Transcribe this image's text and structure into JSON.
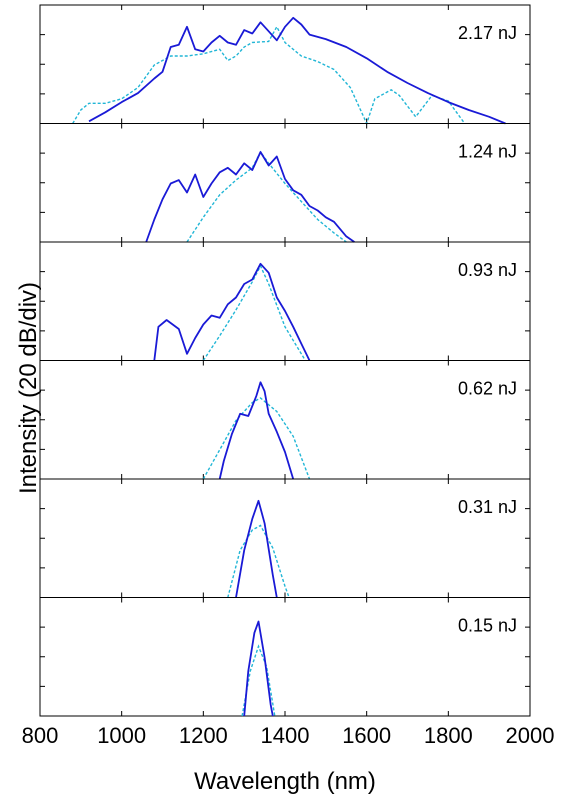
{
  "chart_data": {
    "type": "line",
    "xlabel": "Wavelength (nm)",
    "ylabel": "Intensity (20 dB/div)",
    "xlim": [
      800,
      2000
    ],
    "xticks": [
      "800",
      "1000",
      "1200",
      "1400",
      "1600",
      "1800",
      "2000"
    ],
    "y_unit_per_div_dB": 20,
    "grid": false,
    "line_colors": {
      "measured": "#1a1ad6",
      "simulated": "#21b6d6"
    },
    "panels": [
      {
        "label": "2.17 nJ",
        "measured": [
          [
            920,
            0.02
          ],
          [
            960,
            0.1
          ],
          [
            1000,
            0.19
          ],
          [
            1040,
            0.27
          ],
          [
            1080,
            0.4
          ],
          [
            1100,
            0.46
          ],
          [
            1120,
            0.68
          ],
          [
            1140,
            0.7
          ],
          [
            1160,
            0.86
          ],
          [
            1180,
            0.66
          ],
          [
            1200,
            0.64
          ],
          [
            1220,
            0.72
          ],
          [
            1240,
            0.78
          ],
          [
            1260,
            0.72
          ],
          [
            1280,
            0.7
          ],
          [
            1300,
            0.83
          ],
          [
            1320,
            0.8
          ],
          [
            1340,
            0.9
          ],
          [
            1360,
            0.82
          ],
          [
            1380,
            0.74
          ],
          [
            1400,
            0.86
          ],
          [
            1420,
            0.94
          ],
          [
            1440,
            0.88
          ],
          [
            1460,
            0.79
          ],
          [
            1500,
            0.75
          ],
          [
            1550,
            0.68
          ],
          [
            1600,
            0.58
          ],
          [
            1650,
            0.46
          ],
          [
            1700,
            0.36
          ],
          [
            1750,
            0.27
          ],
          [
            1800,
            0.19
          ],
          [
            1850,
            0.12
          ],
          [
            1900,
            0.06
          ],
          [
            1940,
            0.0
          ]
        ],
        "simulated": [
          [
            880,
            0.0
          ],
          [
            900,
            0.12
          ],
          [
            920,
            0.18
          ],
          [
            960,
            0.18
          ],
          [
            1000,
            0.22
          ],
          [
            1040,
            0.32
          ],
          [
            1080,
            0.52
          ],
          [
            1120,
            0.6
          ],
          [
            1160,
            0.6
          ],
          [
            1200,
            0.62
          ],
          [
            1240,
            0.66
          ],
          [
            1260,
            0.56
          ],
          [
            1280,
            0.6
          ],
          [
            1300,
            0.68
          ],
          [
            1320,
            0.72
          ],
          [
            1360,
            0.73
          ],
          [
            1380,
            0.86
          ],
          [
            1400,
            0.72
          ],
          [
            1440,
            0.6
          ],
          [
            1480,
            0.55
          ],
          [
            1520,
            0.48
          ],
          [
            1560,
            0.32
          ],
          [
            1600,
            0.0
          ],
          [
            1620,
            0.22
          ],
          [
            1660,
            0.3
          ],
          [
            1680,
            0.25
          ],
          [
            1720,
            0.06
          ],
          [
            1760,
            0.25
          ],
          [
            1800,
            0.2
          ],
          [
            1840,
            0.0
          ]
        ]
      },
      {
        "label": "1.24 nJ",
        "measured": [
          [
            1060,
            0.0
          ],
          [
            1080,
            0.2
          ],
          [
            1100,
            0.38
          ],
          [
            1120,
            0.52
          ],
          [
            1140,
            0.55
          ],
          [
            1160,
            0.44
          ],
          [
            1180,
            0.6
          ],
          [
            1200,
            0.4
          ],
          [
            1220,
            0.52
          ],
          [
            1240,
            0.62
          ],
          [
            1260,
            0.66
          ],
          [
            1280,
            0.6
          ],
          [
            1300,
            0.7
          ],
          [
            1320,
            0.64
          ],
          [
            1340,
            0.8
          ],
          [
            1360,
            0.68
          ],
          [
            1380,
            0.76
          ],
          [
            1400,
            0.56
          ],
          [
            1420,
            0.46
          ],
          [
            1440,
            0.42
          ],
          [
            1460,
            0.32
          ],
          [
            1480,
            0.28
          ],
          [
            1500,
            0.22
          ],
          [
            1520,
            0.18
          ],
          [
            1550,
            0.05
          ],
          [
            1570,
            0.0
          ]
        ],
        "simulated": [
          [
            1160,
            0.0
          ],
          [
            1200,
            0.22
          ],
          [
            1240,
            0.42
          ],
          [
            1280,
            0.55
          ],
          [
            1320,
            0.66
          ],
          [
            1340,
            0.8
          ],
          [
            1360,
            0.7
          ],
          [
            1400,
            0.52
          ],
          [
            1440,
            0.36
          ],
          [
            1480,
            0.2
          ],
          [
            1520,
            0.08
          ],
          [
            1550,
            0.0
          ]
        ]
      },
      {
        "label": "0.93 nJ",
        "measured": [
          [
            1080,
            0.0
          ],
          [
            1090,
            0.3
          ],
          [
            1110,
            0.36
          ],
          [
            1140,
            0.28
          ],
          [
            1160,
            0.06
          ],
          [
            1180,
            0.2
          ],
          [
            1200,
            0.32
          ],
          [
            1220,
            0.4
          ],
          [
            1240,
            0.38
          ],
          [
            1260,
            0.5
          ],
          [
            1280,
            0.56
          ],
          [
            1300,
            0.68
          ],
          [
            1320,
            0.72
          ],
          [
            1340,
            0.86
          ],
          [
            1360,
            0.78
          ],
          [
            1380,
            0.56
          ],
          [
            1400,
            0.44
          ],
          [
            1420,
            0.3
          ],
          [
            1440,
            0.15
          ],
          [
            1460,
            0.0
          ]
        ],
        "simulated": [
          [
            1200,
            0.0
          ],
          [
            1240,
            0.22
          ],
          [
            1280,
            0.45
          ],
          [
            1320,
            0.7
          ],
          [
            1340,
            0.84
          ],
          [
            1360,
            0.68
          ],
          [
            1400,
            0.3
          ],
          [
            1440,
            0.06
          ],
          [
            1450,
            0.0
          ]
        ]
      },
      {
        "label": "0.62 nJ",
        "measured": [
          [
            1240,
            0.0
          ],
          [
            1250,
            0.16
          ],
          [
            1270,
            0.4
          ],
          [
            1290,
            0.58
          ],
          [
            1310,
            0.56
          ],
          [
            1330,
            0.74
          ],
          [
            1340,
            0.86
          ],
          [
            1350,
            0.78
          ],
          [
            1360,
            0.58
          ],
          [
            1380,
            0.42
          ],
          [
            1400,
            0.24
          ],
          [
            1420,
            0.0
          ]
        ],
        "simulated": [
          [
            1200,
            0.0
          ],
          [
            1240,
            0.26
          ],
          [
            1280,
            0.52
          ],
          [
            1320,
            0.68
          ],
          [
            1340,
            0.72
          ],
          [
            1380,
            0.6
          ],
          [
            1420,
            0.38
          ],
          [
            1460,
            0.0
          ]
        ]
      },
      {
        "label": "0.31 nJ",
        "measured": [
          [
            1280,
            0.0
          ],
          [
            1300,
            0.42
          ],
          [
            1320,
            0.7
          ],
          [
            1335,
            0.86
          ],
          [
            1350,
            0.66
          ],
          [
            1370,
            0.2
          ],
          [
            1380,
            0.0
          ]
        ],
        "simulated": [
          [
            1260,
            0.0
          ],
          [
            1290,
            0.42
          ],
          [
            1320,
            0.6
          ],
          [
            1340,
            0.64
          ],
          [
            1370,
            0.44
          ],
          [
            1400,
            0.1
          ],
          [
            1410,
            0.0
          ]
        ]
      },
      {
        "label": "0.15 nJ",
        "measured": [
          [
            1300,
            0.0
          ],
          [
            1310,
            0.4
          ],
          [
            1325,
            0.74
          ],
          [
            1335,
            0.84
          ],
          [
            1350,
            0.52
          ],
          [
            1365,
            0.1
          ],
          [
            1370,
            0.0
          ]
        ],
        "simulated": [
          [
            1295,
            0.0
          ],
          [
            1315,
            0.4
          ],
          [
            1335,
            0.62
          ],
          [
            1355,
            0.44
          ],
          [
            1375,
            0.0
          ]
        ]
      }
    ]
  }
}
